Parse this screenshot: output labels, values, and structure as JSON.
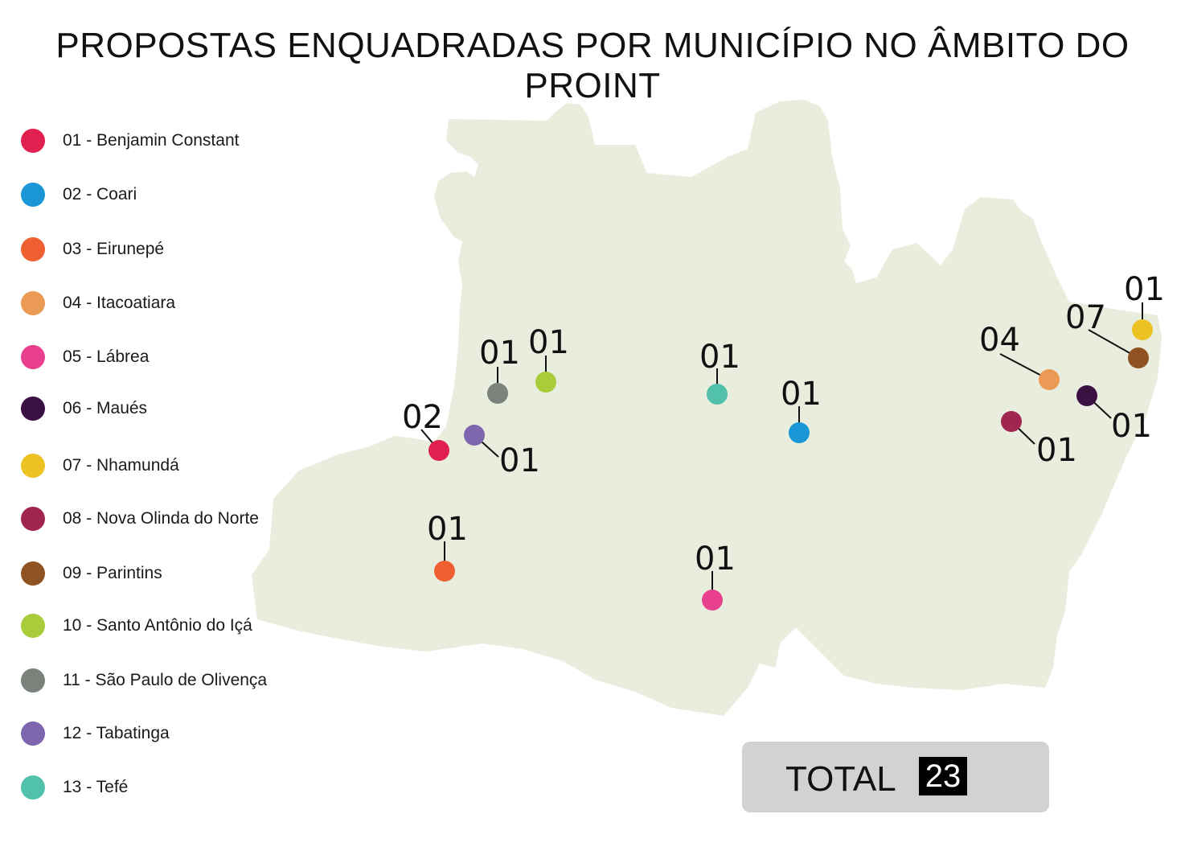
{
  "title": "PROPOSTAS ENQUADRADAS POR MUNICÍPIO NO ÂMBITO DO PROINT",
  "legend": [
    {
      "label": "01 - Benjamin Constant",
      "color": "#e0204e"
    },
    {
      "label": "02 - Coari",
      "color": "#1a96d6"
    },
    {
      "label": "03 - Eirunepé",
      "color": "#ef5f32"
    },
    {
      "label": "04 - Itacoatiara",
      "color": "#eb9a55"
    },
    {
      "label": "05 - Lábrea",
      "color": "#e9408d"
    },
    {
      "label": "06 - Maués",
      "color": "#3b1143"
    },
    {
      "label": "07 - Nhamundá",
      "color": "#ecc323"
    },
    {
      "label": "08 - Nova Olinda do Norte",
      "color": "#a1264f"
    },
    {
      "label": "09 - Parintins",
      "color": "#8f5220"
    },
    {
      "label": "10 - Santo Antônio do Içá",
      "color": "#a8cc3a"
    },
    {
      "label": "11 - São Paulo de Olivença",
      "color": "#7b827c"
    },
    {
      "label": "12 - Tabatinga",
      "color": "#7e67ae"
    },
    {
      "label": "13 - Tefé",
      "color": "#52c1ac"
    }
  ],
  "markers": [
    {
      "municipality": "Benjamin Constant",
      "count": "02",
      "color": "#e0204e"
    },
    {
      "municipality": "Coari",
      "count": "01",
      "color": "#1a96d6"
    },
    {
      "municipality": "Eirunepé",
      "count": "01",
      "color": "#ef5f32"
    },
    {
      "municipality": "Itacoatiara",
      "count": "04",
      "color": "#eb9a55"
    },
    {
      "municipality": "Lábrea",
      "count": "01",
      "color": "#e9408d"
    },
    {
      "municipality": "Maués",
      "count": "01",
      "color": "#3b1143"
    },
    {
      "municipality": "Nhamundá",
      "count": "01",
      "color": "#ecc323"
    },
    {
      "municipality": "Nova Olinda do Norte",
      "count": "01",
      "color": "#a1264f"
    },
    {
      "municipality": "Parintins",
      "count": "07",
      "color": "#8f5220"
    },
    {
      "municipality": "Santo Antônio do Içá",
      "count": "01",
      "color": "#a8cc3a"
    },
    {
      "municipality": "São Paulo de Olivença",
      "count": "01",
      "color": "#7b827c"
    },
    {
      "municipality": "Tabatinga",
      "count": "01",
      "color": "#7e67ae"
    },
    {
      "municipality": "Tefé",
      "count": "01",
      "color": "#52c1ac"
    }
  ],
  "map_fill": "#e9eddd",
  "total": {
    "label": "TOTAL",
    "value": "23"
  }
}
